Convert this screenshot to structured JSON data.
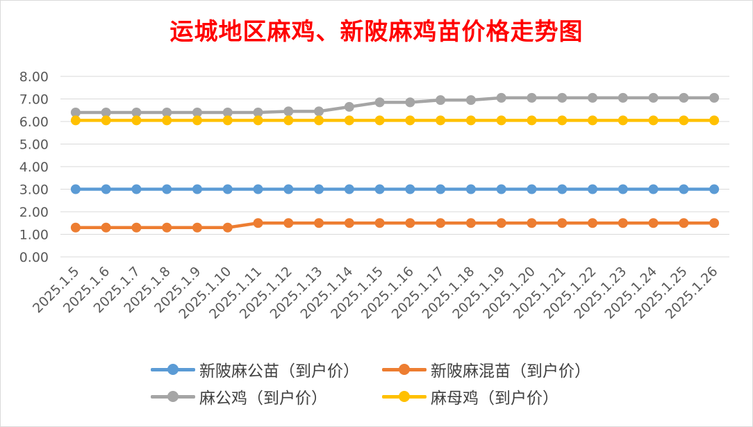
{
  "chart_data": {
    "type": "line",
    "title": "运城地区麻鸡、新陂麻鸡苗价格走势图",
    "categories": [
      "2025.1.5",
      "2025.1.6",
      "2025.1.7",
      "2025.1.8",
      "2025.1.9",
      "2025.1.10",
      "2025.1.11",
      "2025.1.12",
      "2025.1.13",
      "2025.1.14",
      "2025.1.15",
      "2025.1.16",
      "2025.1.17",
      "2025.1.18",
      "2025.1.19",
      "2025.1.20",
      "2025.1.21",
      "2025.1.22",
      "2025.1.23",
      "2025.1.24",
      "2025.1.25",
      "2025.1.26"
    ],
    "ylim": [
      0,
      8
    ],
    "yticks": [
      "0.00",
      "1.00",
      "2.00",
      "3.00",
      "4.00",
      "5.00",
      "6.00",
      "7.00",
      "8.00"
    ],
    "grid": true,
    "legend_position": "bottom",
    "series": [
      {
        "name": "新陂麻公苗（到户价）",
        "color": "#5b9bd5",
        "values": [
          3,
          3,
          3,
          3,
          3,
          3,
          3,
          3,
          3,
          3,
          3,
          3,
          3,
          3,
          3,
          3,
          3,
          3,
          3,
          3,
          3,
          3
        ]
      },
      {
        "name": "新陂麻混苗（到户价）",
        "color": "#ed7d31",
        "values": [
          1.3,
          1.3,
          1.3,
          1.3,
          1.3,
          1.3,
          1.5,
          1.5,
          1.5,
          1.5,
          1.5,
          1.5,
          1.5,
          1.5,
          1.5,
          1.5,
          1.5,
          1.5,
          1.5,
          1.5,
          1.5,
          1.5
        ]
      },
      {
        "name": "麻公鸡（到户价）",
        "color": "#a5a5a5",
        "values": [
          6.4,
          6.4,
          6.4,
          6.4,
          6.4,
          6.4,
          6.4,
          6.45,
          6.45,
          6.65,
          6.85,
          6.85,
          6.95,
          6.95,
          7.05,
          7.05,
          7.05,
          7.05,
          7.05,
          7.05,
          7.05,
          7.05
        ]
      },
      {
        "name": "麻母鸡（到户价）",
        "color": "#ffc000",
        "values": [
          6.05,
          6.05,
          6.05,
          6.05,
          6.05,
          6.05,
          6.05,
          6.05,
          6.05,
          6.05,
          6.05,
          6.05,
          6.05,
          6.05,
          6.05,
          6.05,
          6.05,
          6.05,
          6.05,
          6.05,
          6.05,
          6.05
        ]
      }
    ]
  }
}
